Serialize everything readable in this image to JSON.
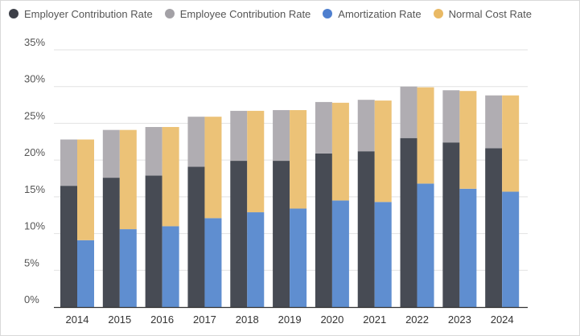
{
  "chart_data": {
    "type": "bar",
    "title": "",
    "xlabel": "",
    "ylabel": "",
    "ylim": [
      0,
      35
    ],
    "yticks": [
      0,
      5,
      10,
      15,
      20,
      25,
      30,
      35
    ],
    "ytick_labels": [
      "0%",
      "5%",
      "10%",
      "15%",
      "20%",
      "25%",
      "30%",
      "35%"
    ],
    "grid": true,
    "legend_position": "top-left",
    "categories": [
      "2014",
      "2015",
      "2016",
      "2017",
      "2018",
      "2019",
      "2020",
      "2021",
      "2022",
      "2023",
      "2024"
    ],
    "stacks": [
      {
        "name": "total-contribution",
        "series": [
          {
            "name": "Employer Contribution Rate",
            "color": "#474b54",
            "values": [
              16.5,
              17.6,
              17.9,
              19.1,
              19.9,
              19.9,
              20.9,
              21.2,
              23.0,
              22.4,
              21.6
            ]
          },
          {
            "name": "Employee Contribution Rate",
            "color": "#b0adb2",
            "values": [
              6.3,
              6.5,
              6.6,
              6.8,
              6.8,
              6.9,
              7.0,
              7.0,
              7.0,
              7.1,
              7.2
            ]
          }
        ]
      },
      {
        "name": "total-cost",
        "series": [
          {
            "name": "Amortization Rate",
            "color": "#5f8ed0",
            "values": [
              9.1,
              10.6,
              11.0,
              12.1,
              12.9,
              13.4,
              14.5,
              14.3,
              16.8,
              16.1,
              15.7
            ]
          },
          {
            "name": "Normal Cost Rate",
            "color": "#ecc277",
            "values": [
              13.7,
              13.5,
              13.5,
              13.8,
              13.8,
              13.4,
              13.3,
              13.8,
              13.1,
              13.3,
              13.1
            ]
          }
        ]
      }
    ]
  },
  "legend": [
    {
      "label": "Employer Contribution Rate",
      "color": "#3d4048"
    },
    {
      "label": "Employee Contribution Rate",
      "color": "#a3a1a6"
    },
    {
      "label": "Amortization Rate",
      "color": "#4e7fcf"
    },
    {
      "label": "Normal Cost Rate",
      "color": "#e9b964"
    }
  ]
}
